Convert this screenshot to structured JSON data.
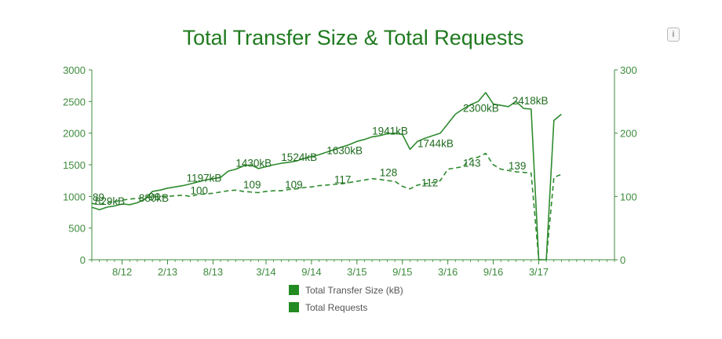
{
  "info_button_label": "i",
  "chart_data": {
    "type": "line",
    "title": "Total Transfer Size & Total Requests",
    "colors": {
      "axis": "#3d8b3d",
      "line": "#2e8b2e",
      "title": "#1f7a1f",
      "legend_swatch": "#228b22"
    },
    "x_range": [
      0,
      69
    ],
    "x_ticks": [
      {
        "label": "8/12",
        "x": 4
      },
      {
        "label": "2/13",
        "x": 10
      },
      {
        "label": "8/13",
        "x": 16
      },
      {
        "label": "3/14",
        "x": 23
      },
      {
        "label": "9/14",
        "x": 29
      },
      {
        "label": "3/15",
        "x": 35
      },
      {
        "label": "9/15",
        "x": 41
      },
      {
        "label": "3/16",
        "x": 47
      },
      {
        "label": "9/16",
        "x": 53
      },
      {
        "label": "3/17",
        "x": 59
      }
    ],
    "y_left": {
      "range": [
        0,
        3000
      ],
      "ticks": [
        "0",
        "500",
        "1000",
        "1500",
        "2000",
        "2500",
        "3000"
      ]
    },
    "y_right": {
      "range": [
        0,
        300
      ],
      "ticks": [
        "0",
        "100",
        "200",
        "300"
      ]
    },
    "series": [
      {
        "name": "Total Transfer Size (kB)",
        "axis": "left",
        "style": "solid",
        "points": [
          [
            0,
            829
          ],
          [
            1,
            790
          ],
          [
            2,
            830
          ],
          [
            3,
            850
          ],
          [
            4,
            880
          ],
          [
            5,
            870
          ],
          [
            6,
            900
          ],
          [
            7,
            960
          ],
          [
            8,
            1080
          ],
          [
            9,
            1100
          ],
          [
            10,
            1130
          ],
          [
            11,
            1150
          ],
          [
            12,
            1170
          ],
          [
            13,
            1197
          ],
          [
            14,
            1230
          ],
          [
            15,
            1260
          ],
          [
            16,
            1280
          ],
          [
            17,
            1300
          ],
          [
            18,
            1400
          ],
          [
            19,
            1430
          ],
          [
            20,
            1480
          ],
          [
            21,
            1500
          ],
          [
            22,
            1440
          ],
          [
            23,
            1470
          ],
          [
            24,
            1500
          ],
          [
            25,
            1524
          ],
          [
            26,
            1540
          ],
          [
            27,
            1560
          ],
          [
            28,
            1600
          ],
          [
            29,
            1630
          ],
          [
            30,
            1660
          ],
          [
            31,
            1700
          ],
          [
            32,
            1740
          ],
          [
            33,
            1780
          ],
          [
            34,
            1820
          ],
          [
            35,
            1870
          ],
          [
            36,
            1900
          ],
          [
            37,
            1941
          ],
          [
            38,
            1960
          ],
          [
            39,
            1990
          ],
          [
            40,
            2000
          ],
          [
            41,
            1980
          ],
          [
            42,
            1744
          ],
          [
            43,
            1870
          ],
          [
            44,
            1920
          ],
          [
            45,
            1960
          ],
          [
            46,
            2000
          ],
          [
            47,
            2150
          ],
          [
            48,
            2300
          ],
          [
            49,
            2380
          ],
          [
            50,
            2450
          ],
          [
            51,
            2500
          ],
          [
            52,
            2640
          ],
          [
            53,
            2460
          ],
          [
            54,
            2440
          ],
          [
            55,
            2418
          ],
          [
            56,
            2500
          ],
          [
            57,
            2390
          ],
          [
            58,
            2380
          ],
          [
            59,
            0
          ],
          [
            60,
            0
          ],
          [
            61,
            2200
          ],
          [
            62,
            2300
          ]
        ]
      },
      {
        "name": "Total Requests",
        "axis": "right",
        "style": "dashed",
        "points": [
          [
            0,
            89
          ],
          [
            1,
            87
          ],
          [
            2,
            90
          ],
          [
            3,
            92
          ],
          [
            4,
            94
          ],
          [
            5,
            96
          ],
          [
            6,
            97
          ],
          [
            7,
            98
          ],
          [
            8,
            99
          ],
          [
            9,
            100
          ],
          [
            10,
            100
          ],
          [
            11,
            101
          ],
          [
            12,
            102
          ],
          [
            13,
            100
          ],
          [
            14,
            103
          ],
          [
            15,
            104
          ],
          [
            16,
            105
          ],
          [
            17,
            107
          ],
          [
            18,
            109
          ],
          [
            19,
            110
          ],
          [
            20,
            108
          ],
          [
            21,
            107
          ],
          [
            22,
            106
          ],
          [
            23,
            108
          ],
          [
            24,
            109
          ],
          [
            25,
            109
          ],
          [
            26,
            111
          ],
          [
            27,
            112
          ],
          [
            28,
            114
          ],
          [
            29,
            115
          ],
          [
            30,
            117
          ],
          [
            31,
            118
          ],
          [
            32,
            119
          ],
          [
            33,
            120
          ],
          [
            34,
            122
          ],
          [
            35,
            124
          ],
          [
            36,
            126
          ],
          [
            37,
            128
          ],
          [
            38,
            127
          ],
          [
            39,
            125
          ],
          [
            40,
            124
          ],
          [
            41,
            116
          ],
          [
            42,
            112
          ],
          [
            43,
            118
          ],
          [
            44,
            120
          ],
          [
            45,
            122
          ],
          [
            46,
            125
          ],
          [
            47,
            143
          ],
          [
            48,
            145
          ],
          [
            49,
            147
          ],
          [
            50,
            160
          ],
          [
            51,
            162
          ],
          [
            52,
            168
          ],
          [
            53,
            150
          ],
          [
            54,
            143
          ],
          [
            55,
            141
          ],
          [
            56,
            139
          ],
          [
            57,
            138
          ],
          [
            58,
            137
          ],
          [
            59,
            0
          ],
          [
            60,
            0
          ],
          [
            61,
            130
          ],
          [
            62,
            135
          ]
        ]
      }
    ],
    "annotations": [
      {
        "text": "829kB",
        "x": 0.4,
        "value": 829,
        "axis": "left"
      },
      {
        "text": "89",
        "x": 0.1,
        "value": 89,
        "axis": "right"
      },
      {
        "text": "880kB",
        "x": 6.2,
        "value": 880,
        "axis": "left"
      },
      {
        "text": "90",
        "x": 7.5,
        "value": 90,
        "axis": "right"
      },
      {
        "text": "1197kB",
        "x": 12.5,
        "value": 1197,
        "axis": "left"
      },
      {
        "text": "100",
        "x": 13,
        "value": 100,
        "axis": "right"
      },
      {
        "text": "1430kB",
        "x": 19,
        "value": 1430,
        "axis": "left"
      },
      {
        "text": "109",
        "x": 20,
        "value": 109,
        "axis": "right"
      },
      {
        "text": "1524kB",
        "x": 25,
        "value": 1524,
        "axis": "left"
      },
      {
        "text": "109",
        "x": 25.5,
        "value": 109,
        "axis": "right"
      },
      {
        "text": "1630kB",
        "x": 31,
        "value": 1630,
        "axis": "left"
      },
      {
        "text": "117",
        "x": 32,
        "value": 117,
        "axis": "right"
      },
      {
        "text": "1941kB",
        "x": 37,
        "value": 1941,
        "axis": "left"
      },
      {
        "text": "128",
        "x": 38,
        "value": 128,
        "axis": "right"
      },
      {
        "text": "1744kB",
        "x": 43,
        "value": 1744,
        "axis": "left"
      },
      {
        "text": "112",
        "x": 43.5,
        "value": 112,
        "axis": "right"
      },
      {
        "text": "2300kB",
        "x": 49,
        "value": 2300,
        "axis": "left"
      },
      {
        "text": "143",
        "x": 49,
        "value": 143,
        "axis": "right"
      },
      {
        "text": "2418kB",
        "x": 55.5,
        "value": 2418,
        "axis": "left"
      },
      {
        "text": "139",
        "x": 55,
        "value": 139,
        "axis": "right"
      }
    ],
    "legend": {
      "placement": "bottom-center"
    }
  }
}
